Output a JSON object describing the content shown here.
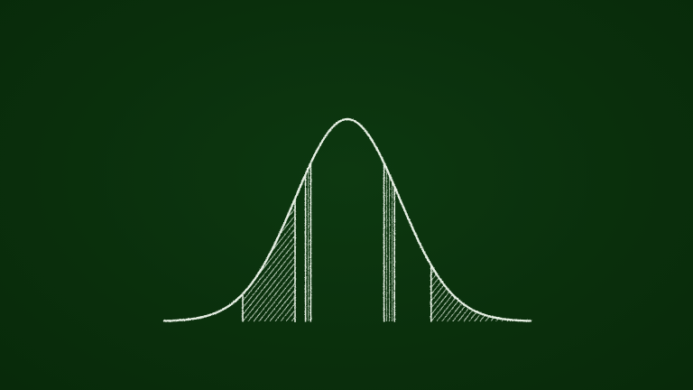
{
  "colors": {
    "board": "#0a2f0c",
    "chalk": "#e6efe3"
  },
  "diagram": {
    "kind": "normal-distribution-curve",
    "mean": 0,
    "std_dev": 1,
    "x_range": [
      -3.5,
      3.5
    ],
    "shaded_regions": [
      {
        "from": -2,
        "to": -1,
        "style": "diagonal-hatch"
      },
      {
        "from": -0.8,
        "to": -0.7,
        "style": "vertical-lines"
      },
      {
        "from": 0.7,
        "to": 0.9,
        "style": "vertical-lines"
      },
      {
        "from": 1.6,
        "to": 3.5,
        "style": "diagonal-hatch"
      }
    ]
  }
}
